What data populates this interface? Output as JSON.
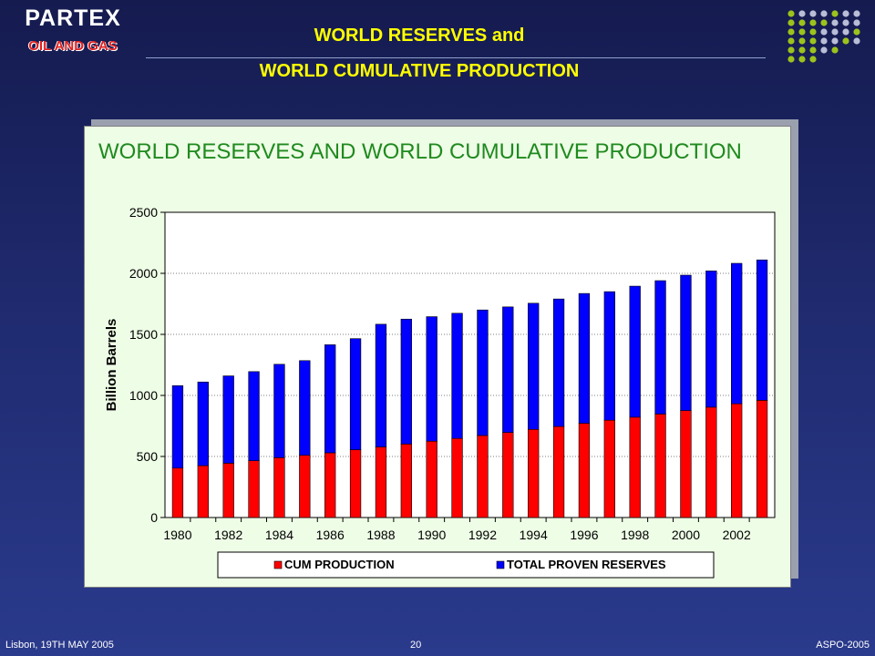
{
  "logo": {
    "name": "PARTEX",
    "subtitle": "OIL AND GAS"
  },
  "header": {
    "title_line1": "WORLD RESERVES and",
    "title_line2": "WORLD CUMULATIVE PRODUCTION"
  },
  "colors": {
    "cum_production": "#ff0000",
    "total_reserves": "#0000ff",
    "title_yellow": "#ffff00",
    "chart_title_green": "#1f8a1f",
    "dot_gray": "#b9bdd6",
    "dot_green": "#9cc21c"
  },
  "chart_data": {
    "type": "bar",
    "stacked": true,
    "title": "WORLD RESERVES AND WORLD CUMULATIVE PRODUCTION",
    "ylabel": "Billion Barrels",
    "xlabel": "",
    "ylim": [
      0,
      2500
    ],
    "yticks": [
      0,
      500,
      1000,
      1500,
      2000,
      2500
    ],
    "grid": true,
    "legend_position": "bottom",
    "categories": [
      "1980",
      "1981",
      "1982",
      "1983",
      "1984",
      "1985",
      "1986",
      "1987",
      "1988",
      "1989",
      "1990",
      "1991",
      "1992",
      "1993",
      "1994",
      "1995",
      "1996",
      "1997",
      "1998",
      "1999",
      "2000",
      "2001",
      "2002",
      "2003"
    ],
    "x_tick_labels": [
      "1980",
      "",
      "1982",
      "",
      "1984",
      "",
      "1986",
      "",
      "1988",
      "",
      "1990",
      "",
      "1992",
      "",
      "1994",
      "",
      "1996",
      "",
      "1998",
      "",
      "2000",
      "",
      "2002",
      ""
    ],
    "series": [
      {
        "name": "CUM PRODUCTION",
        "values": [
          405,
          425,
          445,
          465,
          490,
          510,
          530,
          555,
          578,
          602,
          625,
          648,
          672,
          697,
          722,
          746,
          772,
          797,
          822,
          848,
          876,
          904,
          932,
          960
        ]
      },
      {
        "name": "TOTAL PROVEN RESERVES",
        "values": [
          675,
          685,
          715,
          730,
          765,
          775,
          885,
          910,
          1005,
          1023,
          1020,
          1025,
          1028,
          1028,
          1033,
          1044,
          1063,
          1053,
          1073,
          1092,
          1109,
          1116,
          1150,
          1150
        ]
      }
    ]
  },
  "footer": {
    "left": "Lisbon, 19TH MAY 2005",
    "center": "20",
    "right": "ASPO-2005"
  }
}
